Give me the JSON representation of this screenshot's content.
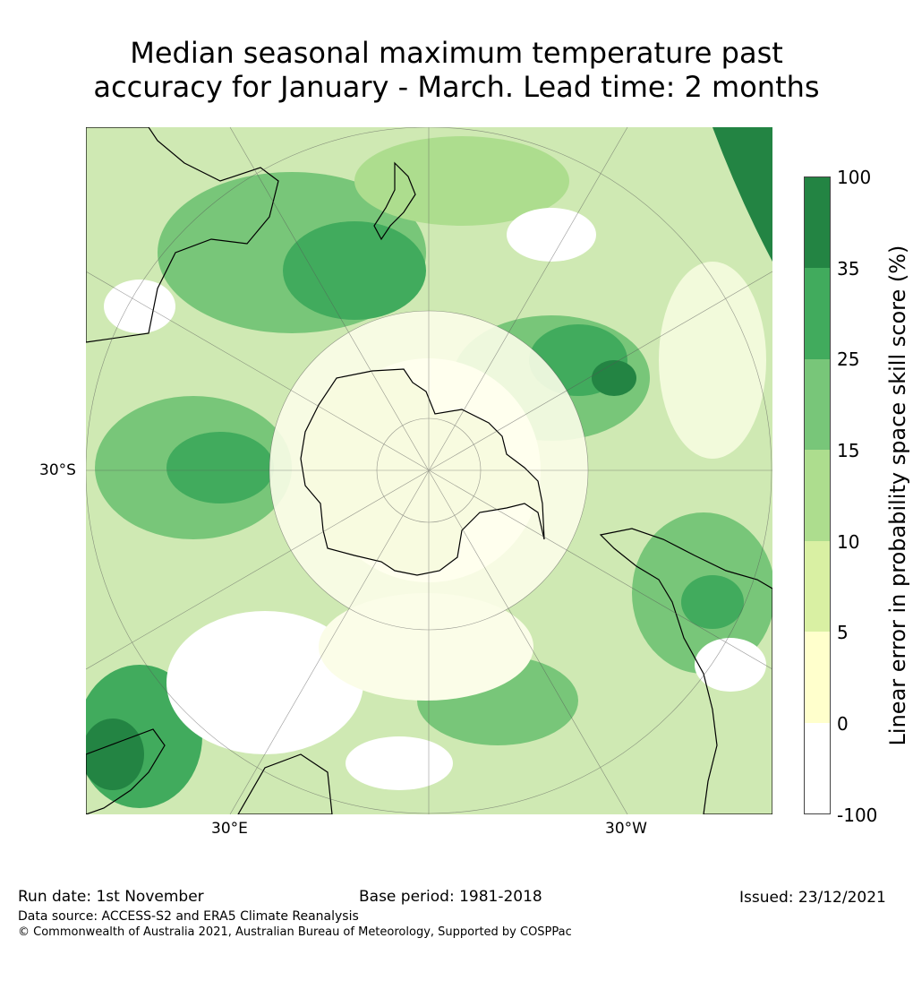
{
  "title": {
    "line1": "Median seasonal maximum temperature past",
    "line2": "accuracy for January - March. Lead time: 2 months"
  },
  "map": {
    "projection": "south-polar-stereographic",
    "lat_label": "30°S",
    "lon_labels": {
      "east": "30°E",
      "west": "30°W"
    }
  },
  "colorbar": {
    "label": "Linear error in probability space skill score (%)",
    "ticks": [
      "100",
      "35",
      "25",
      "15",
      "10",
      "5",
      "0",
      "-100"
    ],
    "colors": [
      "#238443",
      "#41ab5d",
      "#78c679",
      "#addd8e",
      "#d9f0a3",
      "#ffffcc",
      "#ffffff"
    ]
  },
  "footer": {
    "run_date": "Run date: 1st November",
    "base_period": "Base period: 1981-2018",
    "issued": "Issued: 23/12/2021",
    "data_source": "Data source: ACCESS-S2 and ERA5 Climate Reanalysis",
    "copyright": "© Commonwealth of Australia 2021, Australian Bureau of Meteorology, Supported by COSPPac"
  }
}
